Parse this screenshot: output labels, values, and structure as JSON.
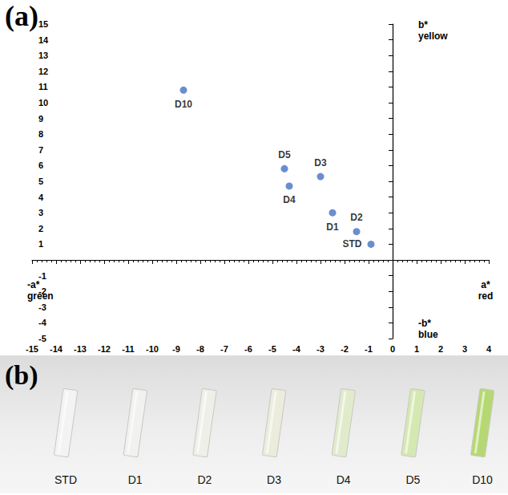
{
  "chart_data": {
    "type": "scatter",
    "title": "(a)",
    "labels": [
      "D10",
      "D5",
      "D3",
      "D4",
      "D1",
      "D2",
      "STD"
    ],
    "x": [
      -8.7,
      -4.5,
      -3.0,
      -4.3,
      -2.5,
      -1.5,
      -0.9
    ],
    "y": [
      10.8,
      5.8,
      5.3,
      4.7,
      3.0,
      1.8,
      1.0
    ],
    "color": "#4472c4",
    "marker": "circle",
    "xlim": [
      -15,
      4
    ],
    "ylim": [
      -5,
      15
    ],
    "xticks": [
      -15,
      -14,
      -13,
      -12,
      -11,
      -10,
      -9,
      -8,
      -7,
      -6,
      -5,
      -4,
      -3,
      -2,
      -1,
      0,
      1,
      2,
      3,
      4
    ],
    "yticks": [
      -5,
      -4,
      -3,
      -2,
      -1,
      1,
      2,
      3,
      4,
      5,
      6,
      7,
      8,
      9,
      10,
      11,
      12,
      13,
      14,
      15
    ],
    "grid": false,
    "axis_titles": {
      "x_positive": [
        "a*",
        "red"
      ],
      "x_negative": [
        "-a*",
        "green"
      ],
      "y_positive": [
        "b*",
        "yellow"
      ],
      "y_negative": [
        "-b*",
        "blue"
      ]
    }
  },
  "photo": {
    "title": "(b)",
    "samples": [
      {
        "label": "STD",
        "color": "#f3f3f3"
      },
      {
        "label": "D1",
        "color": "#f1f1ef"
      },
      {
        "label": "D2",
        "color": "#efefe9"
      },
      {
        "label": "D3",
        "color": "#ebecdc"
      },
      {
        "label": "D4",
        "color": "#e1ebcc"
      },
      {
        "label": "D5",
        "color": "#d6e8b2"
      },
      {
        "label": "D10",
        "color": "#b6d872"
      }
    ]
  }
}
